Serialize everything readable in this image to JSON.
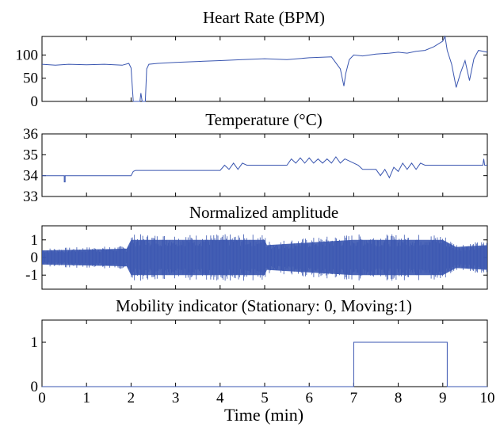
{
  "colors": {
    "line": "#3a56b0",
    "frame": "#000000",
    "background": "#ffffff"
  },
  "chart_data": [
    {
      "type": "line",
      "title": "Heart Rate (BPM)",
      "xlim": [
        0,
        10
      ],
      "ylim": [
        0,
        140
      ],
      "yticks": [
        "0",
        "50",
        "100"
      ],
      "series": [
        {
          "x": [
            0,
            0.3,
            0.6,
            1.0,
            1.4,
            1.8,
            1.95,
            2.0,
            2.05,
            2.2,
            2.22,
            2.25,
            2.28,
            2.32,
            2.35,
            2.4,
            2.6,
            3.0,
            3.5,
            4.0,
            4.5,
            5.0,
            5.5,
            6.0,
            6.5,
            6.7,
            6.78,
            6.82,
            6.9,
            7.0,
            7.2,
            7.5,
            7.8,
            8.0,
            8.2,
            8.4,
            8.6,
            8.8,
            9.0,
            9.05,
            9.1,
            9.2,
            9.3,
            9.4,
            9.5,
            9.6,
            9.7,
            9.8,
            10.0
          ],
          "y": [
            80,
            78,
            80,
            79,
            80,
            78,
            82,
            72,
            0,
            0,
            18,
            0,
            0,
            0,
            70,
            80,
            82,
            84,
            86,
            88,
            90,
            92,
            90,
            94,
            96,
            70,
            33,
            60,
            90,
            100,
            98,
            102,
            104,
            106,
            104,
            108,
            110,
            118,
            130,
            140,
            110,
            80,
            30,
            62,
            88,
            45,
            92,
            110,
            106
          ]
        }
      ]
    },
    {
      "type": "line",
      "title": "Temperature (°C)",
      "xlim": [
        0,
        10
      ],
      "ylim": [
        33,
        36
      ],
      "yticks": [
        "33",
        "34",
        "35",
        "36"
      ],
      "series": [
        {
          "x": [
            0,
            0.5,
            0.5,
            0.52,
            0.52,
            2.0,
            2.05,
            2.1,
            4.0,
            4.1,
            4.2,
            4.3,
            4.4,
            4.5,
            4.6,
            5.5,
            5.6,
            5.7,
            5.8,
            5.9,
            6.0,
            6.1,
            6.2,
            6.3,
            6.4,
            6.5,
            6.6,
            6.7,
            6.8,
            6.9,
            7.1,
            7.2,
            7.5,
            7.6,
            7.7,
            7.8,
            7.9,
            8.0,
            8.1,
            8.2,
            8.3,
            8.4,
            8.5,
            8.6,
            8.7,
            9.9,
            9.92,
            9.94,
            10.0
          ],
          "y": [
            34,
            34,
            33.7,
            33.7,
            34,
            34,
            34.2,
            34.25,
            34.25,
            34.5,
            34.3,
            34.6,
            34.3,
            34.6,
            34.5,
            34.5,
            34.8,
            34.6,
            34.85,
            34.6,
            34.85,
            34.6,
            34.8,
            34.6,
            34.8,
            34.6,
            34.9,
            34.6,
            34.8,
            34.7,
            34.5,
            34.3,
            34.3,
            34.0,
            34.3,
            33.9,
            34.4,
            34.2,
            34.6,
            34.3,
            34.6,
            34.3,
            34.6,
            34.5,
            34.5,
            34.5,
            34.8,
            34.5,
            34.5
          ]
        }
      ]
    },
    {
      "type": "area",
      "title": "Normalized amplitude",
      "xlim": [
        0,
        10
      ],
      "ylim": [
        -1.8,
        1.8
      ],
      "yticks": [
        "1",
        "0",
        "-1"
      ],
      "series": [
        {
          "x": [
            0,
            1.9,
            2.0,
            4.0,
            4.05,
            5.0,
            5.05,
            6.98,
            7.02,
            9.0,
            9.3,
            10.0
          ],
          "y_upper": [
            0.4,
            0.5,
            1.0,
            1.0,
            1.0,
            1.0,
            0.7,
            1.0,
            1.0,
            1.0,
            0.6,
            0.7
          ],
          "y_lower": [
            -0.4,
            -0.5,
            -1.0,
            -1.0,
            -1.0,
            -1.0,
            -0.7,
            -1.0,
            -1.0,
            -1.0,
            -0.6,
            -0.7
          ]
        }
      ]
    },
    {
      "type": "line",
      "title": "Mobility indicator (Stationary: 0, Moving:1)",
      "xlim": [
        0,
        10
      ],
      "ylim": [
        0,
        1.5
      ],
      "yticks": [
        "0",
        "1"
      ],
      "xlabel": "Time (min)",
      "xticks": [
        "0",
        "1",
        "2",
        "3",
        "4",
        "5",
        "6",
        "7",
        "8",
        "9",
        "10"
      ],
      "series": [
        {
          "x": [
            0,
            7.0,
            7.0,
            9.1,
            9.1,
            10
          ],
          "y": [
            0,
            0,
            1,
            1,
            0,
            0
          ]
        }
      ]
    }
  ]
}
